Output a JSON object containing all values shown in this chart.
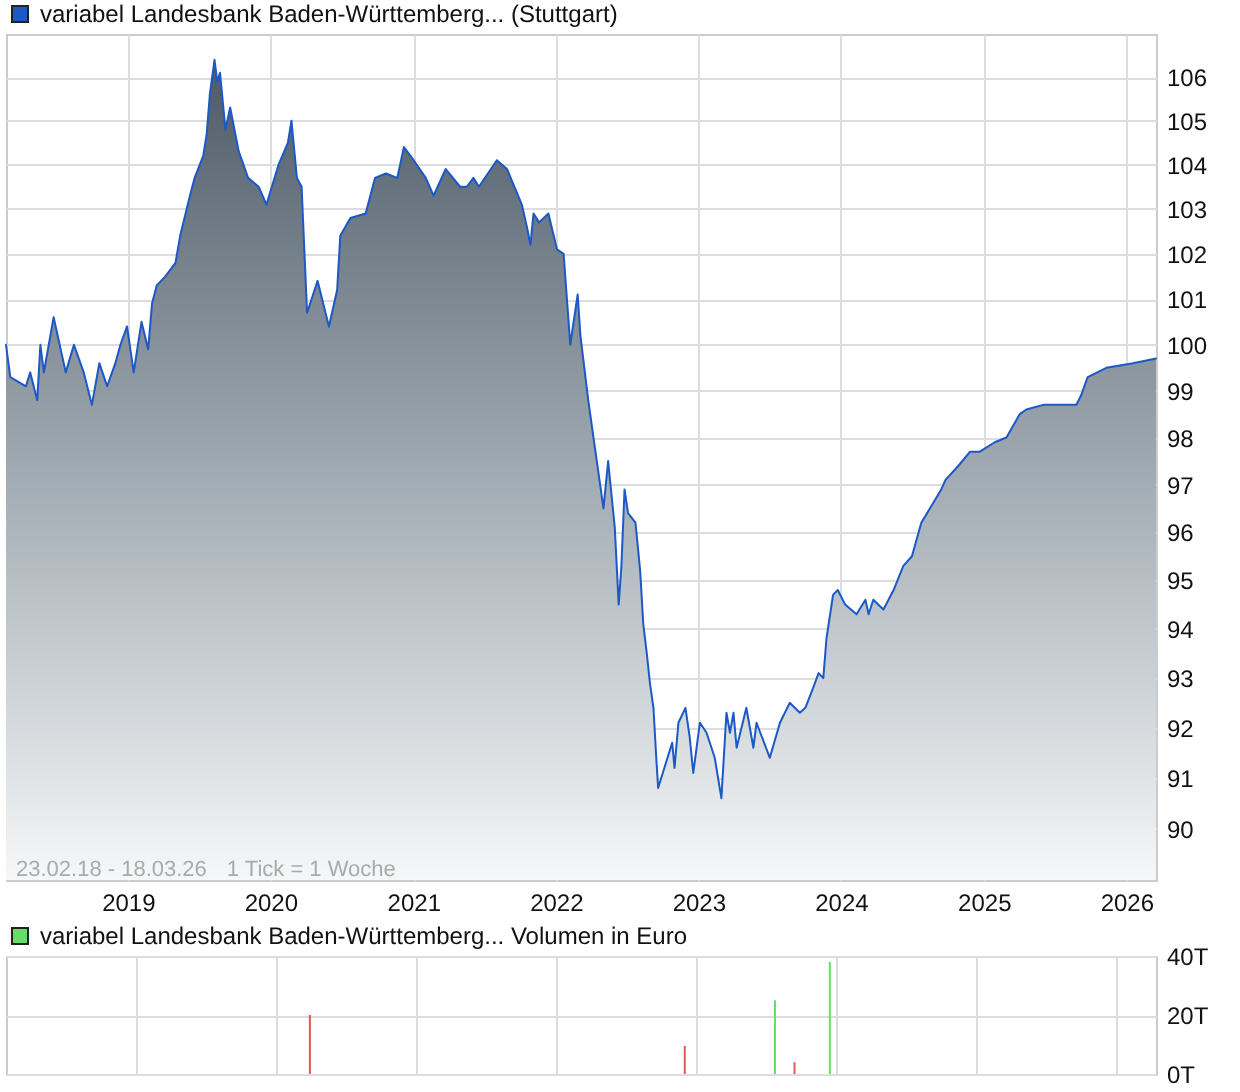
{
  "chart_data": [
    {
      "type": "area",
      "log": true,
      "grid": true,
      "legend": "top left",
      "x": [
        "2018-02-23",
        "2018-03-06",
        "2018-04-15",
        "2018-04-26",
        "2018-05-14",
        "2018-05-22",
        "2018-05-31",
        "2018-06-25",
        "2018-07-26",
        "2018-08-16",
        "2018-09-10",
        "2018-10-01",
        "2018-10-20",
        "2018-11-09",
        "2018-11-30",
        "2018-12-13",
        "2018-12-30",
        "2019-01-16",
        "2019-02-05",
        "2019-02-22",
        "2019-03-04",
        "2019-03-16",
        "2019-04-07",
        "2019-05-03",
        "2019-05-15",
        "2019-06-09",
        "2019-06-21",
        "2019-07-13",
        "2019-07-22",
        "2019-07-30",
        "2019-08-11",
        "2019-08-18",
        "2019-08-25",
        "2019-09-08",
        "2019-09-20",
        "2019-10-12",
        "2019-11-05",
        "2019-12-02",
        "2019-12-22",
        "2020-01-22",
        "2020-02-15",
        "2020-02-24",
        "2020-03-09",
        "2020-03-21",
        "2020-04-04",
        "2020-05-01",
        "2020-05-30",
        "2020-06-20",
        "2020-06-28",
        "2020-07-24",
        "2020-09-01",
        "2020-09-25",
        "2020-10-23",
        "2020-11-21",
        "2020-12-08",
        "2021-01-02",
        "2021-02-02",
        "2021-02-22",
        "2021-03-25",
        "2021-05-01",
        "2021-05-18",
        "2021-06-04",
        "2021-06-18",
        "2021-08-03",
        "2021-08-29",
        "2021-10-06",
        "2021-10-19",
        "2021-10-28",
        "2021-11-05",
        "2021-11-19",
        "2021-12-13",
        "2022-01-04",
        "2022-01-21",
        "2022-02-07",
        "2022-02-26",
        "2022-03-05",
        "2022-03-25",
        "2022-04-16",
        "2022-05-03",
        "2022-05-15",
        "2022-06-01",
        "2022-06-11",
        "2022-06-18",
        "2022-06-26",
        "2022-07-05",
        "2022-07-24",
        "2022-08-05",
        "2022-08-13",
        "2022-08-22",
        "2022-08-30",
        "2022-09-08",
        "2022-09-16",
        "2022-09-20",
        "2022-09-28",
        "2022-10-26",
        "2022-11-01",
        "2022-11-11",
        "2022-11-29",
        "2022-12-10",
        "2022-12-19",
        "2023-01-05",
        "2023-01-22",
        "2023-02-12",
        "2023-03-01",
        "2023-03-14",
        "2023-03-23",
        "2023-04-01",
        "2023-04-09",
        "2023-05-04",
        "2023-05-22",
        "2023-05-30",
        "2023-07-03",
        "2023-07-29",
        "2023-08-23",
        "2023-09-18",
        "2023-10-02",
        "2023-10-22",
        "2023-11-05",
        "2023-11-17",
        "2023-11-25",
        "2023-12-12",
        "2023-12-24",
        "2024-01-12",
        "2024-02-10",
        "2024-03-04",
        "2024-03-12",
        "2024-03-24",
        "2024-04-19",
        "2024-05-15",
        "2024-06-09",
        "2024-07-01",
        "2024-07-25",
        "2024-08-16",
        "2024-09-14",
        "2024-09-25",
        "2024-10-28",
        "2024-11-27",
        "2024-12-22",
        "2025-01-29",
        "2025-02-28",
        "2025-04-03",
        "2025-04-20",
        "2025-06-02",
        "2025-08-26",
        "2025-09-07",
        "2025-09-24",
        "2025-11-11",
        "2026-01-18",
        "2026-03-18"
      ],
      "series": [
        {
          "name": "variabel Landesbank Baden-Württemberg... (Stuttgart)",
          "color": "#1c58c6",
          "values": [
            100.0,
            99.3,
            99.1,
            99.4,
            98.8,
            100.0,
            99.4,
            100.6,
            99.4,
            100.0,
            99.4,
            98.7,
            99.6,
            99.1,
            99.6,
            100.0,
            100.4,
            99.4,
            100.5,
            99.9,
            100.9,
            101.3,
            101.5,
            101.8,
            102.4,
            103.3,
            103.7,
            104.2,
            104.7,
            105.6,
            106.4,
            105.9,
            106.1,
            104.8,
            105.3,
            104.3,
            103.7,
            103.5,
            103.1,
            104.0,
            104.5,
            105.0,
            103.7,
            103.5,
            100.7,
            101.4,
            100.4,
            101.2,
            102.4,
            102.8,
            102.9,
            103.7,
            103.8,
            103.7,
            104.4,
            104.1,
            103.7,
            103.3,
            103.9,
            103.5,
            103.5,
            103.7,
            103.5,
            104.1,
            103.9,
            103.1,
            102.6,
            102.2,
            102.9,
            102.7,
            102.9,
            102.1,
            102.0,
            100.0,
            101.1,
            100.2,
            98.8,
            97.5,
            96.5,
            97.5,
            96.1,
            94.5,
            95.3,
            96.9,
            96.4,
            96.2,
            95.2,
            94.1,
            93.5,
            92.9,
            92.4,
            91.3,
            90.8,
            91.0,
            91.7,
            91.2,
            92.1,
            92.4,
            91.8,
            91.1,
            92.1,
            91.9,
            91.4,
            90.6,
            92.3,
            91.9,
            92.3,
            91.6,
            92.4,
            91.6,
            92.1,
            91.4,
            92.1,
            92.5,
            92.3,
            92.4,
            92.8,
            93.1,
            93.0,
            93.8,
            94.7,
            94.8,
            94.5,
            94.3,
            94.6,
            94.3,
            94.6,
            94.4,
            94.8,
            95.3,
            95.5,
            96.2,
            96.5,
            96.9,
            97.1,
            97.4,
            97.7,
            97.7,
            97.9,
            98.0,
            98.5,
            98.6,
            98.7,
            98.7,
            98.9,
            99.3,
            99.5,
            99.6,
            99.7
          ]
        }
      ],
      "xlim": [
        "2018-02-23",
        "2026-03-18"
      ],
      "xticks": [
        "2019",
        "2020",
        "2021",
        "2022",
        "2023",
        "2024",
        "2025",
        "2026"
      ],
      "ylim": [
        89,
        107
      ],
      "yticks": [
        90,
        91,
        92,
        93,
        94,
        95,
        96,
        97,
        98,
        99,
        100,
        101,
        102,
        103,
        104,
        105,
        106
      ],
      "annotations": [
        "23.02.18 - 18.03.26",
        "1 Tick = 1 Woche"
      ]
    },
    {
      "type": "bar",
      "grid": true,
      "legend": "top left",
      "tick_labels": "y",
      "x": [
        "2020-03-30",
        "2022-12-02",
        "2023-07-25",
        "2023-09-14",
        "2023-12-15"
      ],
      "series": [
        {
          "name": "variabel Landesbank Baden-Württemberg... Volumen in Euro",
          "color": "#66dd66",
          "values": [
            null,
            null,
            25,
            null,
            38
          ]
        },
        {
          "color": "#dd5a5a",
          "values": [
            20,
            9.5,
            null,
            4,
            null
          ]
        }
      ],
      "xlim": [
        "2018-02-23",
        "2026-03-18"
      ],
      "xticks": [
        "2019",
        "2020",
        "2021",
        "2022",
        "2023",
        "2024",
        "2025",
        "2026"
      ],
      "ylim": [
        0,
        40
      ],
      "yticks": [
        {
          "value": 0,
          "label": "0T"
        },
        {
          "value": 20,
          "label": "20T"
        },
        {
          "value": 40,
          "label": "40T"
        }
      ]
    }
  ]
}
